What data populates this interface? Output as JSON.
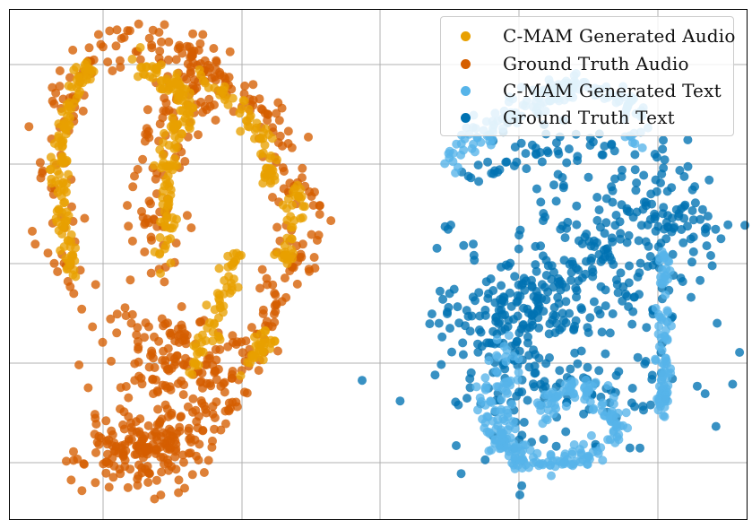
{
  "chart_data": {
    "type": "scatter",
    "title": "",
    "xlabel": "",
    "ylabel": "",
    "xlim": [
      0,
      100
    ],
    "ylim": [
      0,
      100
    ],
    "grid": true,
    "tick_labels_visible": false,
    "legend_placement": "top-right",
    "series": [
      {
        "name": "C-MAM Generated Audio",
        "color": "#e8a000",
        "cluster": "left"
      },
      {
        "name": "Ground Truth Audio",
        "color": "#d55e00",
        "cluster": "left"
      },
      {
        "name": "C-MAM Generated Text",
        "color": "#56b4e9",
        "cluster": "right"
      },
      {
        "name": "Ground Truth Text",
        "color": "#0072b2",
        "cluster": "right"
      }
    ]
  },
  "legend": {
    "items": [
      {
        "label": "C-MAM Generated Audio",
        "color": "#e8a000"
      },
      {
        "label": "Ground Truth Audio",
        "color": "#d55e00"
      },
      {
        "label": "C-MAM Generated Text",
        "color": "#56b4e9"
      },
      {
        "label": "Ground Truth Text",
        "color": "#0072b2"
      }
    ]
  }
}
